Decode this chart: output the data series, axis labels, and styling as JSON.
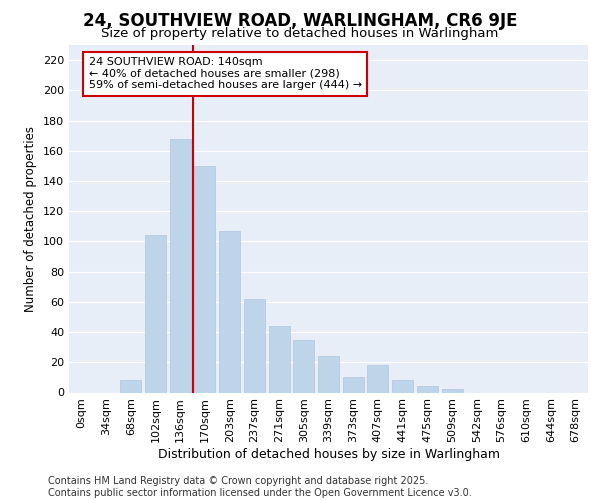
{
  "title": "24, SOUTHVIEW ROAD, WARLINGHAM, CR6 9JE",
  "subtitle": "Size of property relative to detached houses in Warlingham",
  "xlabel": "Distribution of detached houses by size in Warlingham",
  "ylabel": "Number of detached properties",
  "categories": [
    "0sqm",
    "34sqm",
    "68sqm",
    "102sqm",
    "136sqm",
    "170sqm",
    "203sqm",
    "237sqm",
    "271sqm",
    "305sqm",
    "339sqm",
    "373sqm",
    "407sqm",
    "441sqm",
    "475sqm",
    "509sqm",
    "542sqm",
    "576sqm",
    "610sqm",
    "644sqm",
    "678sqm"
  ],
  "values": [
    0,
    0,
    8,
    104,
    168,
    150,
    107,
    62,
    44,
    35,
    24,
    10,
    18,
    8,
    4,
    2,
    0,
    0,
    0,
    0,
    0
  ],
  "bar_color": "#bdd4e9",
  "highlight_color": "#cc0000",
  "red_line_after_index": 4,
  "annotation_line1": "24 SOUTHVIEW ROAD: 140sqm",
  "annotation_line2": "← 40% of detached houses are smaller (298)",
  "annotation_line3": "59% of semi-detached houses are larger (444) →",
  "annotation_box_color": "#ffffff",
  "annotation_box_edge": "#cc0000",
  "footer_line1": "Contains HM Land Registry data © Crown copyright and database right 2025.",
  "footer_line2": "Contains public sector information licensed under the Open Government Licence v3.0.",
  "ylim": [
    0,
    230
  ],
  "yticks": [
    0,
    20,
    40,
    60,
    80,
    100,
    120,
    140,
    160,
    180,
    200,
    220
  ],
  "bg_color": "#e8eef8",
  "grid_color": "#ffffff",
  "title_fontsize": 12,
  "subtitle_fontsize": 9.5,
  "ylabel_fontsize": 8.5,
  "xlabel_fontsize": 9,
  "tick_fontsize": 8,
  "footer_fontsize": 7
}
